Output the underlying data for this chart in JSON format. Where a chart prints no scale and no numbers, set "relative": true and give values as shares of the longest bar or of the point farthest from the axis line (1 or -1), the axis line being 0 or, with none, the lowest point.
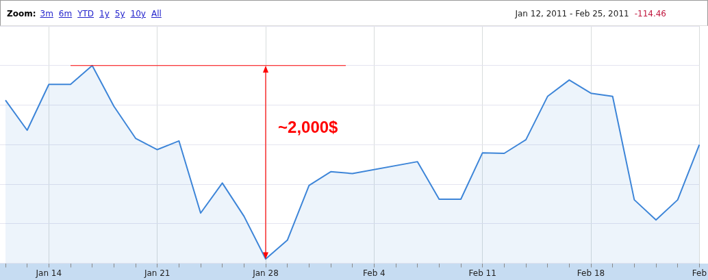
{
  "chart_data": {
    "type": "area",
    "subtitle": "Jan 12, 2011 - Feb 25, 2011",
    "categories": [
      null,
      null,
      "Jan 14",
      null,
      null,
      null,
      null,
      "Jan 21",
      null,
      null,
      null,
      null,
      "Jan 28",
      null,
      null,
      null,
      null,
      "Feb 4",
      null,
      null,
      null,
      null,
      "Feb 11",
      null,
      null,
      null,
      null,
      "Feb 18",
      null,
      null,
      null,
      null,
      "Feb"
    ],
    "relative": true,
    "series": [
      {
        "color": "#3d85d8",
        "values": [
          0.825,
          0.673,
          0.905,
          0.905,
          1,
          0.794,
          0.632,
          0.575,
          0.619,
          0.254,
          0.406,
          0.238,
          0.022,
          0.117,
          0.394,
          0.463,
          0.454,
          null,
          null,
          0.514,
          0.324,
          0.324,
          0.559,
          0.556,
          0.625,
          0.844,
          0.927,
          0.86,
          0.844,
          0.321,
          0.219,
          0.321,
          0.6
        ]
      }
    ],
    "grid": true,
    "legend": false,
    "marker": "none",
    "annotations": [
      "Zoom:",
      "3m",
      "6m",
      "YTD",
      "1y",
      "5y",
      "10y",
      "All",
      "-114.46",
      "~2,000$"
    ],
    "ref_lines": [
      {
        "axis": "y",
        "value": 1,
        "color": "#ff0000"
      }
    ]
  }
}
